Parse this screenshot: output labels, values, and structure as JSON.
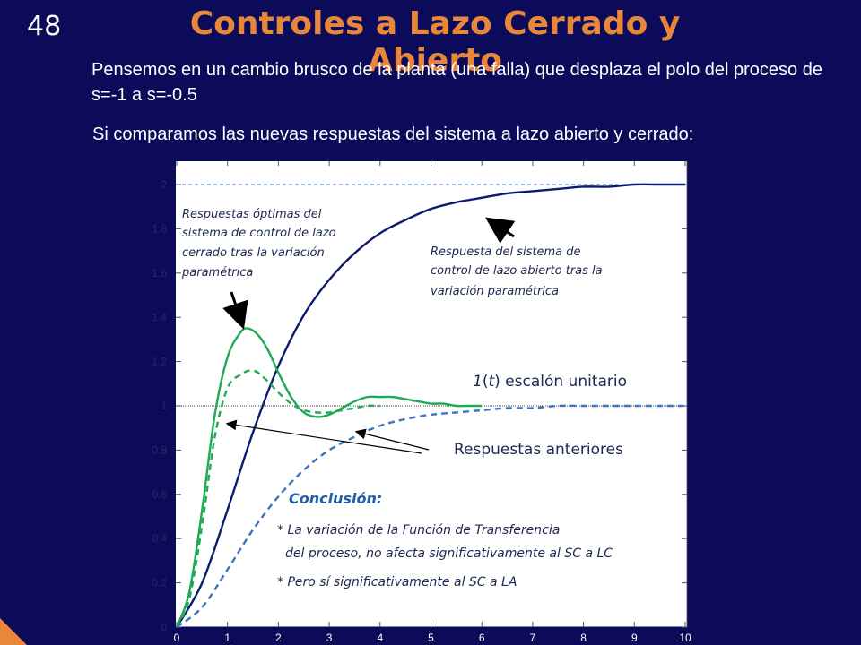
{
  "slide": {
    "number": "48",
    "title": "Controles a Lazo Cerrado y Abierto",
    "paragraph1": "Pensemos en un cambio brusco de la planta (una falla) que desplaza el polo del proceso de s=-1 a s=-0.5",
    "paragraph2": "Si comparamos las nuevas respuestas del sistema a lazo abierto y cerrado:",
    "accent_color": "#e8863a",
    "background_color": "#0b0b5a"
  },
  "annotations": {
    "closed_loop_optimal": [
      "Respuestas óptimas del",
      "sistema de control de lazo",
      "cerrado tras la variación",
      "paramétrica"
    ],
    "open_loop": [
      "Respuesta del sistema de",
      "control de lazo abierto tras la",
      "variación paramétrica"
    ],
    "step_label_italic": "1",
    "step_label_paren_open": "(",
    "step_label_t": "t",
    "step_label_rest": ") escalón unitario",
    "previous": "Respuestas anteriores",
    "conclusion_title": "Conclusión:",
    "conclusion_lines": [
      "* La variación de la Función de Transferencia",
      "del proceso, no afecta significativamente al SC a LC",
      "* Pero sí significativamente al SC a LA"
    ]
  },
  "chart_data": {
    "type": "line",
    "title": "",
    "xlabel": "",
    "ylabel": "",
    "xlim": [
      0,
      10
    ],
    "ylim": [
      0,
      2
    ],
    "x_ticks": [
      "0",
      "1",
      "2",
      "3",
      "4",
      "5",
      "6",
      "7",
      "8",
      "9",
      "10"
    ],
    "y_ticks": [
      "0",
      "0.2",
      "0.4",
      "0.6",
      "0.8",
      "1",
      "1.2",
      "1.4",
      "1.6",
      "1.8",
      "2"
    ],
    "series": [
      {
        "name": "",
        "color": "#0d1a6e",
        "dash": "solid",
        "x": [
          0,
          0.5,
          1,
          1.5,
          2,
          2.5,
          3,
          3.5,
          4,
          4.5,
          5,
          5.5,
          6,
          6.5,
          7,
          7.5,
          8,
          8.5,
          9,
          9.5,
          10
        ],
        "y": [
          0,
          0.2,
          0.53,
          0.88,
          1.18,
          1.41,
          1.57,
          1.69,
          1.78,
          1.84,
          1.89,
          1.92,
          1.94,
          1.96,
          1.97,
          1.98,
          1.99,
          1.99,
          2.0,
          2.0,
          2.0
        ]
      },
      {
        "name": "",
        "color": "#1faa55",
        "dash": "solid",
        "x": [
          0,
          0.25,
          0.5,
          0.75,
          1,
          1.25,
          1.4,
          1.6,
          1.8,
          2,
          2.25,
          2.5,
          2.75,
          3,
          3.25,
          3.5,
          3.75,
          4,
          4.25,
          4.5,
          4.75,
          5,
          5.25,
          5.5,
          5.75,
          6
        ],
        "y": [
          0,
          0.16,
          0.53,
          0.96,
          1.22,
          1.33,
          1.35,
          1.32,
          1.25,
          1.15,
          1.04,
          0.97,
          0.95,
          0.96,
          0.99,
          1.02,
          1.04,
          1.04,
          1.04,
          1.03,
          1.02,
          1.01,
          1.01,
          1.0,
          1.0,
          1.0
        ]
      },
      {
        "name": "",
        "color": "#1faa55",
        "dash": "dashed",
        "x": [
          0,
          0.25,
          0.5,
          0.75,
          1,
          1.25,
          1.5,
          1.75,
          2,
          2.25,
          2.5,
          2.75,
          3,
          3.25,
          3.5,
          3.75,
          4
        ],
        "y": [
          0,
          0.13,
          0.46,
          0.86,
          1.08,
          1.14,
          1.16,
          1.12,
          1.06,
          1.01,
          0.98,
          0.97,
          0.97,
          0.98,
          0.99,
          1.0,
          1.0
        ]
      },
      {
        "name": "",
        "color": "#3a74c4",
        "dash": "dashed",
        "x": [
          0,
          0.5,
          1,
          1.5,
          2,
          2.5,
          3,
          3.5,
          4,
          4.5,
          5,
          5.5,
          6,
          6.5,
          7,
          7.5,
          8,
          8.5,
          9,
          9.5,
          10
        ],
        "y": [
          0,
          0.09,
          0.26,
          0.44,
          0.59,
          0.71,
          0.8,
          0.86,
          0.91,
          0.94,
          0.96,
          0.97,
          0.98,
          0.99,
          0.99,
          1.0,
          1.0,
          1.0,
          1.0,
          1.0,
          1.0
        ]
      }
    ],
    "reference_lines": [
      {
        "y": 1,
        "color": "#444444",
        "dash": "dotted"
      },
      {
        "y": 2,
        "color": "#3a74c4",
        "dash": "dashed"
      }
    ],
    "grid": false
  }
}
